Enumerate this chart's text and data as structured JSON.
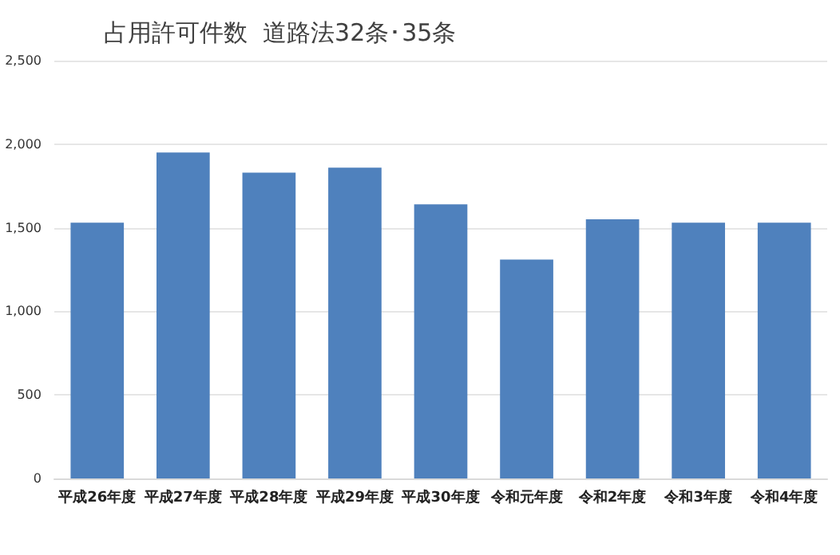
{
  "chart_data": {
    "type": "bar",
    "title": "占用許可件数  道路法32条･35条",
    "categories": [
      "平成26年度",
      "平成27年度",
      "平成28年度",
      "平成29年度",
      "平成30年度",
      "令和元年度",
      "令和2年度",
      "令和3年度",
      "令和4年度"
    ],
    "values": [
      1530,
      1950,
      1830,
      1860,
      1640,
      1310,
      1550,
      1530,
      1530
    ],
    "color": "#4f81bd",
    "ylim": [
      0,
      2500
    ],
    "yticks": [
      0,
      500,
      {
        "value": 1000,
        "label": "1,000"
      },
      {
        "value": 1500,
        "label": "1,500"
      },
      {
        "value": 2000,
        "label": "2,000"
      },
      {
        "value": 2500,
        "label": "2,500"
      }
    ],
    "grid": "y"
  }
}
